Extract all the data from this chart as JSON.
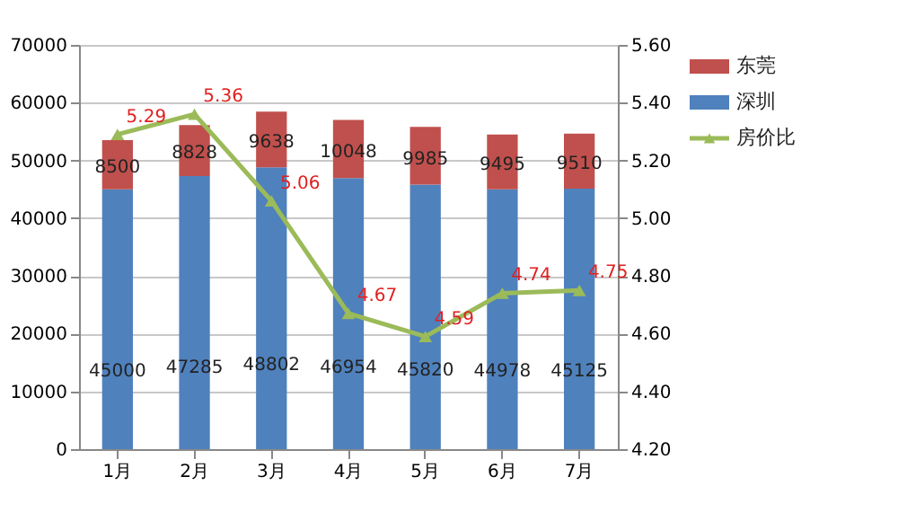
{
  "chart_data": {
    "type": "bar",
    "stacked": true,
    "categories": [
      "1月",
      "2月",
      "3月",
      "4月",
      "5月",
      "6月",
      "7月"
    ],
    "series": [
      {
        "name": "深圳",
        "color": "#4f81bd",
        "values": [
          45000,
          47285,
          48802,
          46954,
          45820,
          44978,
          45125
        ]
      },
      {
        "name": "东莞",
        "color": "#c0504d",
        "values": [
          8500,
          8828,
          9638,
          10048,
          9985,
          9495,
          9510
        ]
      },
      {
        "name": "房价比",
        "type": "line",
        "axis": "y2",
        "color": "#9bbb59",
        "marker": "triangle",
        "values": [
          5.29,
          5.36,
          5.06,
          4.67,
          4.59,
          4.74,
          4.75
        ]
      }
    ],
    "ylim": [
      0,
      70000
    ],
    "yticks": [
      0,
      10000,
      20000,
      30000,
      40000,
      50000,
      60000,
      70000
    ],
    "y2lim": [
      4.2,
      5.6
    ],
    "y2ticks": [
      {
        "value": 4.2,
        "label": "4.20"
      },
      {
        "value": 4.4,
        "label": "4.40"
      },
      {
        "value": 4.6,
        "label": "4.60"
      },
      {
        "value": 4.8,
        "label": "4.80"
      },
      {
        "value": 5.0,
        "label": "5.00"
      },
      {
        "value": 5.2,
        "label": "5.20"
      },
      {
        "value": 5.4,
        "label": "5.40"
      },
      {
        "value": 5.6,
        "label": "5.60"
      }
    ],
    "grid": "y",
    "legend": "top right",
    "data_labels": true
  }
}
